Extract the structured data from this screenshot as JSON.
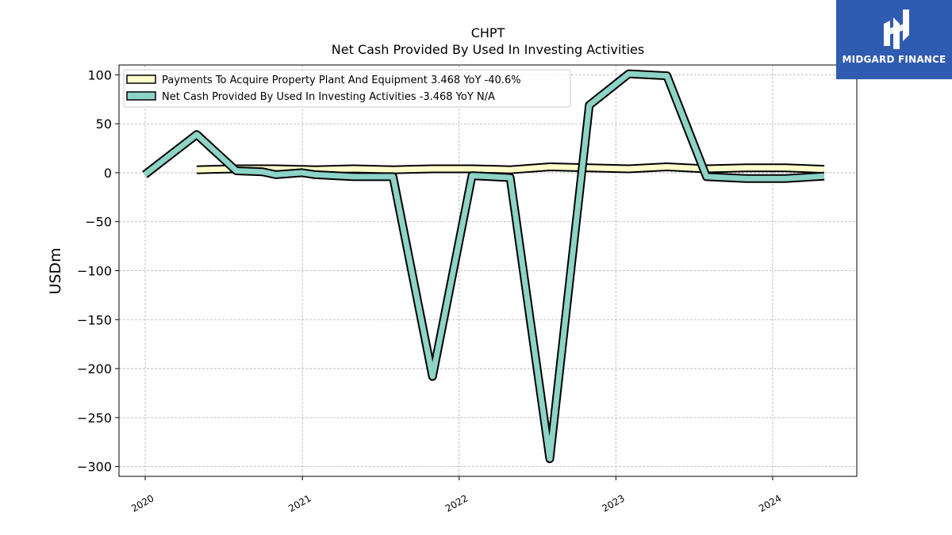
{
  "chart_data": {
    "type": "line",
    "title": "CHPT",
    "subtitle": "Net Cash Provided By Used In Investing Activities",
    "ylabel": "USDm",
    "xlabel": "",
    "ylim": [
      -310,
      110
    ],
    "xlim": [
      "2019-11-01",
      "2024-07-15"
    ],
    "yticks": [
      100,
      50,
      0,
      -50,
      -100,
      -150,
      -200,
      -250,
      -300
    ],
    "ytick_labels": [
      "100",
      "50",
      "0",
      "−50",
      "−100",
      "−150",
      "−200",
      "−250",
      "−300"
    ],
    "xticks": [
      "2020-01-01",
      "2021-01-01",
      "2022-01-01",
      "2023-01-01",
      "2024-01-01"
    ],
    "xtick_labels": [
      "2020",
      "2021",
      "2022",
      "2023",
      "2024"
    ],
    "grid": true,
    "legend_position": "top-left",
    "series": [
      {
        "name": "Payments To Acquire Property Plant And Equipment  3.468 YoY -40.6%",
        "color": "#ffffcc",
        "x": [
          "2020-04-30",
          "2020-07-31",
          "2020-10-31",
          "2021-01-31",
          "2021-04-30",
          "2021-07-31",
          "2021-10-31",
          "2022-01-31",
          "2022-04-30",
          "2022-07-31",
          "2022-10-31",
          "2023-01-31",
          "2023-04-30",
          "2023-07-31",
          "2023-10-31",
          "2024-01-31",
          "2024-04-30"
        ],
        "values": [
          3,
          4,
          4,
          3,
          4,
          3,
          4,
          4,
          3,
          6,
          5,
          4,
          6,
          4,
          5,
          5,
          3.468
        ]
      },
      {
        "name": "Net Cash Provided By Used In Investing Activities  -3.468 YoY N/A",
        "color": "#8dd3c7",
        "x": [
          "2019-12-31",
          "2020-04-30",
          "2020-07-31",
          "2020-09-30",
          "2020-10-31",
          "2020-12-31",
          "2021-01-31",
          "2021-04-30",
          "2021-07-31",
          "2021-10-31",
          "2022-01-31",
          "2022-04-30",
          "2022-07-31",
          "2022-10-31",
          "2023-01-31",
          "2023-04-30",
          "2023-07-31",
          "2023-10-31",
          "2024-01-31",
          "2024-04-30"
        ],
        "values": [
          -2,
          39,
          2,
          1,
          -2,
          0,
          -2,
          -4,
          -4,
          -208,
          -3,
          -5,
          -292,
          69,
          101,
          99,
          -4,
          -6,
          -6,
          -3.468
        ]
      }
    ]
  },
  "brand": {
    "name": "MIDGARD FINANCE",
    "background": "#2f5bb0"
  }
}
